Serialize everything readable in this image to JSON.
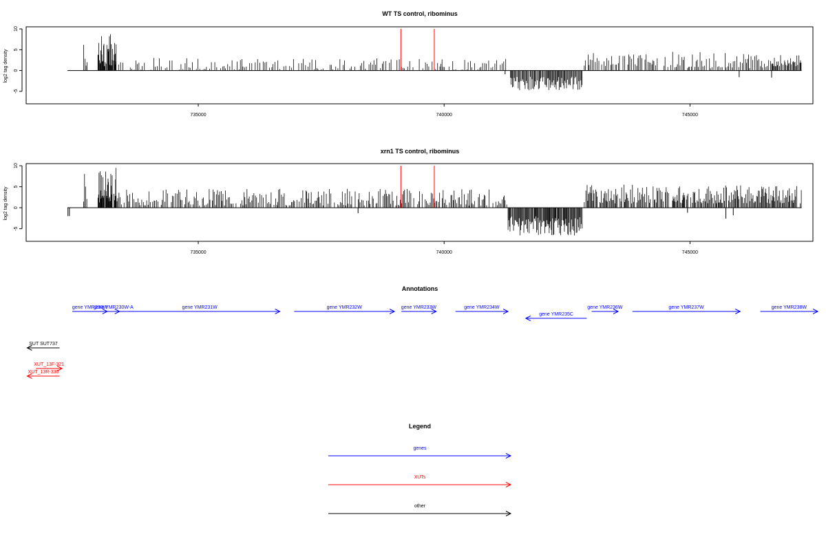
{
  "colors": {
    "genes": "#0000ff",
    "xuts": "#ff0000",
    "other": "#000000",
    "signal": "#000000",
    "highlight": "#ff0000"
  },
  "chart_data": [
    {
      "type": "bar",
      "title": "WT TS control, ribominus",
      "xlabel": "",
      "ylabel": "log2 tag density",
      "xlim": [
        731500,
        747500
      ],
      "ylim": [
        -8,
        10.5
      ],
      "xticks": [
        735000,
        740000,
        745000
      ],
      "xtick_labels": [
        "735000",
        "740000",
        "745000"
      ],
      "yticks": [
        -5,
        0,
        5,
        10
      ],
      "ytick_labels": [
        "-5",
        "0",
        "5",
        "10"
      ],
      "data_start": 732340,
      "data_end": 747270,
      "highlight_positions": [
        739120,
        739800
      ],
      "highlight_height": 10,
      "signal_regions": [
        {
          "start": 732670,
          "end": 732740,
          "min": 1,
          "max": 7.5,
          "step": 20
        },
        {
          "start": 732960,
          "end": 733330,
          "min": 1,
          "max": 8.8,
          "step": 10
        },
        {
          "start": 733330,
          "end": 741330,
          "min": 0,
          "max": 3,
          "step": 35
        },
        {
          "start": 741350,
          "end": 742820,
          "min": -4.8,
          "max": -1.5,
          "step": 18
        },
        {
          "start": 742850,
          "end": 744200,
          "min": 1,
          "max": 4.5,
          "step": 28
        },
        {
          "start": 744200,
          "end": 746600,
          "min": 0.5,
          "max": 4.5,
          "step": 30
        },
        {
          "start": 746600,
          "end": 747270,
          "min": 1,
          "max": 3.7,
          "step": 15
        }
      ],
      "spikes": [
        {
          "x": 746000,
          "y": -1.6
        },
        {
          "x": 746660,
          "y": -1.7
        },
        {
          "x": 741240,
          "y": -0.9
        }
      ]
    },
    {
      "type": "bar",
      "title": "xrn1 TS control, ribominus",
      "xlabel": "",
      "ylabel": "log2 tag density",
      "xlim": [
        731500,
        747500
      ],
      "ylim": [
        -8,
        10.5
      ],
      "xticks": [
        735000,
        740000,
        745000
      ],
      "xtick_labels": [
        "735000",
        "740000",
        "745000"
      ],
      "yticks": [
        -5,
        0,
        5,
        10
      ],
      "ytick_labels": [
        "-5",
        "0",
        "5",
        "10"
      ],
      "data_start": 732340,
      "data_end": 747270,
      "highlight_positions": [
        739120,
        739800
      ],
      "highlight_height": 10,
      "signal_regions": [
        {
          "start": 732670,
          "end": 732740,
          "min": 1,
          "max": 8.2,
          "step": 20
        },
        {
          "start": 732960,
          "end": 733330,
          "min": 1,
          "max": 9.8,
          "step": 10
        },
        {
          "start": 733330,
          "end": 741300,
          "min": 0.5,
          "max": 4.5,
          "step": 25
        },
        {
          "start": 741300,
          "end": 742820,
          "min": -6.8,
          "max": -2,
          "step": 15
        },
        {
          "start": 742850,
          "end": 747270,
          "min": 1,
          "max": 5.5,
          "step": 18
        }
      ],
      "spikes": [
        {
          "x": 732350,
          "y": -2
        },
        {
          "x": 732380,
          "y": -2
        },
        {
          "x": 738250,
          "y": -1.3
        },
        {
          "x": 745730,
          "y": -2.6
        },
        {
          "x": 745880,
          "y": -1.8
        },
        {
          "x": 744950,
          "y": -1.2
        }
      ]
    }
  ],
  "annotations": {
    "title": "Annotations",
    "genes": [
      {
        "label": "gene YMR230W",
        "start": 732440,
        "end": 733150,
        "dir": "+"
      },
      {
        "label": "gene YMR230W-A",
        "start": 733150,
        "end": 733400,
        "dir": "+"
      },
      {
        "label": "gene YMR231W",
        "start": 733400,
        "end": 736660,
        "dir": "+"
      },
      {
        "label": "gene YMR232W",
        "start": 736950,
        "end": 738990,
        "dir": "+"
      },
      {
        "label": "gene YMR233W",
        "start": 739130,
        "end": 739840,
        "dir": "+"
      },
      {
        "label": "gene YMR234W",
        "start": 740230,
        "end": 741300,
        "dir": "+"
      },
      {
        "label": "gene YMR235C",
        "start": 741660,
        "end": 742900,
        "dir": "-"
      },
      {
        "label": "gene YMR236W",
        "start": 743000,
        "end": 743540,
        "dir": "+"
      },
      {
        "label": "gene YMR237W",
        "start": 743830,
        "end": 746020,
        "dir": "+"
      },
      {
        "label": "gene YMR238W",
        "start": 746430,
        "end": 747600,
        "dir": "+"
      }
    ],
    "other": [
      {
        "label": "SUT SUT737",
        "start": 731520,
        "end": 732180,
        "dir": "-"
      }
    ],
    "xuts": [
      {
        "label": "XUT_13F-321",
        "start": 731700,
        "end": 732230,
        "dir": "+"
      },
      {
        "label": "XUT_13R-330",
        "start": 731520,
        "end": 732180,
        "dir": "-"
      }
    ]
  },
  "legend": {
    "title": "Legend",
    "items": [
      {
        "label": "genes",
        "color": "#0000ff"
      },
      {
        "label": "XUTs",
        "color": "#ff0000"
      },
      {
        "label": "other",
        "color": "#000000"
      }
    ]
  }
}
